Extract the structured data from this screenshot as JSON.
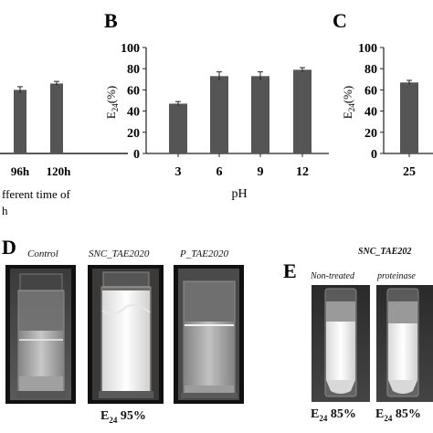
{
  "panels": {
    "A": {
      "letter": "",
      "ticks": [
        "96h",
        "120h"
      ],
      "xlabel_line1": "fferent time of",
      "xlabel_line2": "h"
    },
    "B": {
      "letter": "B",
      "ylabel_main": "E",
      "ylabel_sub": "24",
      "ylabel_unit": "(%)",
      "yticks": [
        "0",
        "20",
        "40",
        "60",
        "80",
        "100"
      ],
      "xlabel": "pH"
    },
    "C": {
      "letter": "C",
      "ylabel_main": "E",
      "ylabel_sub": "24",
      "ylabel_unit": "(%)",
      "yticks": [
        "0",
        "20",
        "40",
        "60",
        "80",
        "100"
      ]
    },
    "D": {
      "letter": "D",
      "labels": [
        "Control",
        "SNC_TAE2020",
        "P_TAE2020"
      ],
      "e24_value": "95%"
    },
    "E": {
      "letter": "E",
      "header": "SNC_TAE202",
      "labels": [
        "Non-treated",
        "proteinase"
      ],
      "e24_values": [
        "85%",
        "85%"
      ]
    },
    "e24_prefix": "E",
    "e24_sub": "24"
  },
  "chart_data": [
    {
      "type": "bar",
      "panel": "A",
      "categories": [
        "96h",
        "120h"
      ],
      "values": [
        60,
        66
      ],
      "errors": [
        3,
        2
      ],
      "ylim": [
        0,
        100
      ]
    },
    {
      "type": "bar",
      "panel": "B",
      "categories": [
        "3",
        "6",
        "9",
        "12"
      ],
      "values": [
        47,
        73,
        73,
        79
      ],
      "errors": [
        2,
        4,
        4,
        2
      ],
      "ylim": [
        0,
        100
      ],
      "xlabel": "pH",
      "ylabel": "E24(%)"
    },
    {
      "type": "bar",
      "panel": "C",
      "categories": [
        "25"
      ],
      "values": [
        67
      ],
      "errors": [
        2
      ],
      "ylim": [
        0,
        100
      ],
      "ylabel": "E24(%)"
    }
  ],
  "colors": {
    "bar": "#555555",
    "axis": "#222222",
    "photo_bg": "#1a1a1a"
  }
}
